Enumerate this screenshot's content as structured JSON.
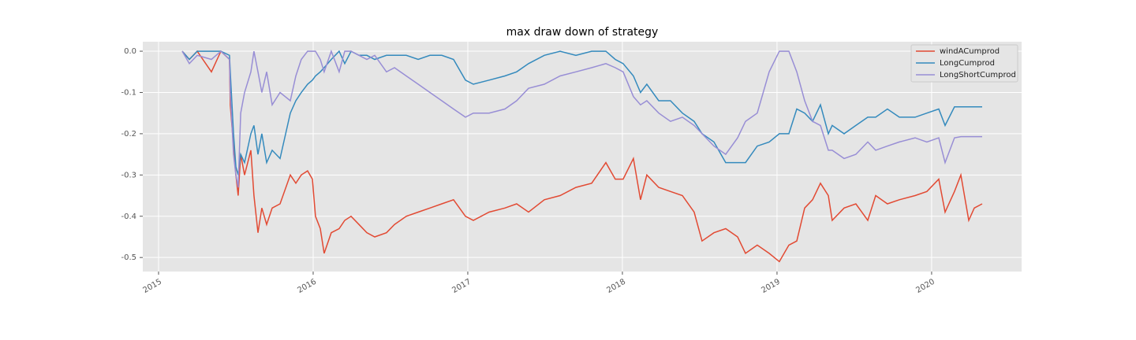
{
  "chart_data": {
    "type": "line",
    "title": "max draw down of strategy",
    "x": [
      2015.153,
      2015.199,
      2015.25,
      2015.342,
      2015.403,
      2015.459,
      2015.464,
      2015.485,
      2015.5,
      2015.515,
      2015.531,
      2015.556,
      2015.597,
      2015.617,
      2015.643,
      2015.668,
      2015.699,
      2015.735,
      2015.786,
      2015.852,
      2015.888,
      2015.923,
      2015.964,
      2015.995,
      2016.015,
      2016.046,
      2016.071,
      2016.117,
      2016.168,
      2016.204,
      2016.245,
      2016.296,
      2016.347,
      2016.398,
      2016.474,
      2016.526,
      2016.602,
      2016.679,
      2016.755,
      2016.832,
      2016.908,
      2016.985,
      2017.036,
      2017.138,
      2017.24,
      2017.316,
      2017.393,
      2017.495,
      2017.597,
      2017.699,
      2017.801,
      2017.893,
      2017.954,
      2018.005,
      2018.071,
      2018.117,
      2018.158,
      2018.235,
      2018.311,
      2018.388,
      2018.464,
      2018.515,
      2018.592,
      2018.668,
      2018.745,
      2018.796,
      2018.872,
      2018.949,
      2019.015,
      2019.077,
      2019.128,
      2019.179,
      2019.23,
      2019.281,
      2019.332,
      2019.357,
      2019.434,
      2019.51,
      2019.587,
      2019.638,
      2019.714,
      2019.791,
      2019.893,
      2019.969,
      2020.046,
      2020.087,
      2020.148,
      2020.189,
      2020.24,
      2020.276,
      2020.327
    ],
    "series": [
      {
        "name": "windACumprod",
        "color": "#E24A33",
        "values": [
          0,
          -0.02,
          0,
          -0.05,
          0,
          -0.02,
          -0.13,
          -0.23,
          -0.3,
          -0.35,
          -0.25,
          -0.3,
          -0.24,
          -0.35,
          -0.44,
          -0.38,
          -0.42,
          -0.38,
          -0.37,
          -0.3,
          -0.32,
          -0.3,
          -0.29,
          -0.31,
          -0.4,
          -0.43,
          -0.49,
          -0.44,
          -0.43,
          -0.41,
          -0.4,
          -0.42,
          -0.44,
          -0.45,
          -0.44,
          -0.42,
          -0.4,
          -0.39,
          -0.38,
          -0.37,
          -0.36,
          -0.4,
          -0.41,
          -0.39,
          -0.38,
          -0.37,
          -0.39,
          -0.36,
          -0.35,
          -0.33,
          -0.32,
          -0.27,
          -0.31,
          -0.31,
          -0.26,
          -0.36,
          -0.3,
          -0.33,
          -0.34,
          -0.35,
          -0.39,
          -0.46,
          -0.44,
          -0.43,
          -0.45,
          -0.49,
          -0.47,
          -0.49,
          -0.51,
          -0.47,
          -0.46,
          -0.38,
          -0.36,
          -0.32,
          -0.35,
          -0.41,
          -0.38,
          -0.37,
          -0.41,
          -0.35,
          -0.37,
          -0.36,
          -0.35,
          -0.34,
          -0.31,
          -0.39,
          -0.34,
          -0.3,
          -0.41,
          -0.38,
          -0.37
        ]
      },
      {
        "name": "LongCumprod",
        "color": "#348ABD",
        "values": [
          0,
          -0.02,
          0,
          0,
          0,
          -0.01,
          -0.05,
          -0.2,
          -0.28,
          -0.3,
          -0.25,
          -0.27,
          -0.2,
          -0.18,
          -0.25,
          -0.2,
          -0.27,
          -0.24,
          -0.26,
          -0.15,
          -0.12,
          -0.1,
          -0.08,
          -0.07,
          -0.06,
          -0.05,
          -0.04,
          -0.02,
          0,
          -0.03,
          0,
          -0.01,
          -0.01,
          -0.02,
          -0.01,
          -0.01,
          -0.01,
          -0.02,
          -0.01,
          -0.01,
          -0.02,
          -0.07,
          -0.08,
          -0.07,
          -0.06,
          -0.05,
          -0.03,
          -0.01,
          0,
          -0.01,
          0,
          0,
          -0.02,
          -0.03,
          -0.06,
          -0.1,
          -0.08,
          -0.12,
          -0.12,
          -0.15,
          -0.17,
          -0.2,
          -0.22,
          -0.27,
          -0.27,
          -0.27,
          -0.23,
          -0.22,
          -0.2,
          -0.2,
          -0.14,
          -0.15,
          -0.17,
          -0.13,
          -0.2,
          -0.18,
          -0.2,
          -0.18,
          -0.16,
          -0.16,
          -0.14,
          -0.16,
          -0.16,
          -0.15,
          -0.14,
          -0.18,
          -0.135,
          -0.135,
          -0.135,
          -0.135,
          -0.135
        ]
      },
      {
        "name": "LongShortCumprod",
        "color": "#988ED5",
        "values": [
          0,
          -0.03,
          -0.01,
          -0.02,
          0,
          -0.02,
          -0.1,
          -0.25,
          -0.3,
          -0.33,
          -0.15,
          -0.1,
          -0.05,
          0,
          -0.05,
          -0.1,
          -0.05,
          -0.13,
          -0.1,
          -0.12,
          -0.06,
          -0.02,
          0,
          0,
          0,
          -0.02,
          -0.05,
          0,
          -0.05,
          0,
          0,
          -0.01,
          -0.02,
          -0.01,
          -0.05,
          -0.04,
          -0.06,
          -0.08,
          -0.1,
          -0.12,
          -0.14,
          -0.16,
          -0.15,
          -0.15,
          -0.14,
          -0.12,
          -0.09,
          -0.08,
          -0.06,
          -0.05,
          -0.04,
          -0.03,
          -0.04,
          -0.05,
          -0.11,
          -0.13,
          -0.12,
          -0.15,
          -0.17,
          -0.16,
          -0.18,
          -0.2,
          -0.23,
          -0.25,
          -0.21,
          -0.17,
          -0.15,
          -0.05,
          0,
          0,
          -0.05,
          -0.12,
          -0.17,
          -0.18,
          -0.24,
          -0.24,
          -0.26,
          -0.25,
          -0.22,
          -0.24,
          -0.23,
          -0.22,
          -0.21,
          -0.22,
          -0.21,
          -0.27,
          -0.21,
          -0.207,
          -0.207,
          -0.207,
          -0.207
        ]
      }
    ],
    "xlim": [
      2014.898,
      2020.582
    ],
    "xticks": [
      2015,
      2016,
      2017,
      2018,
      2019,
      2020
    ],
    "ylim": [
      -0.534,
      0.023
    ],
    "yticks": [
      {
        "value": 0,
        "label": "0.0"
      },
      -0.1,
      -0.2,
      -0.3,
      -0.4,
      -0.5
    ],
    "grid": true,
    "legend": "upper right"
  }
}
